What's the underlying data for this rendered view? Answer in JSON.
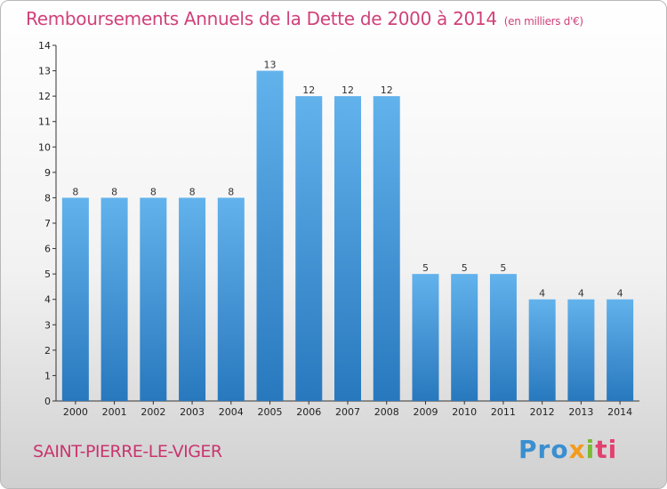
{
  "header": {
    "title": "Remboursements Annuels de la Dette de 2000 à 2014",
    "unit": "(en milliers d'€)"
  },
  "footer": {
    "commune": "SAINT-PIERRE-LE-VIGER",
    "brand": "Proxiti"
  },
  "colors": {
    "title": "#d0417a",
    "bar_top": "#62b2ec",
    "bar_bottom": "#2878be"
  },
  "chart_data": {
    "type": "bar",
    "title": "Remboursements Annuels de la Dette de 2000 à 2014",
    "categories": [
      "2000",
      "2001",
      "2002",
      "2003",
      "2004",
      "2005",
      "2006",
      "2007",
      "2008",
      "2009",
      "2010",
      "2011",
      "2012",
      "2013",
      "2014"
    ],
    "values": [
      8,
      8,
      8,
      8,
      8,
      13,
      12,
      12,
      12,
      5,
      5,
      5,
      4,
      4,
      4
    ],
    "ylim": [
      0,
      14
    ],
    "yticks": [
      0,
      1,
      2,
      3,
      4,
      5,
      6,
      7,
      8,
      9,
      10,
      11,
      12,
      13,
      14
    ],
    "grid": false
  }
}
